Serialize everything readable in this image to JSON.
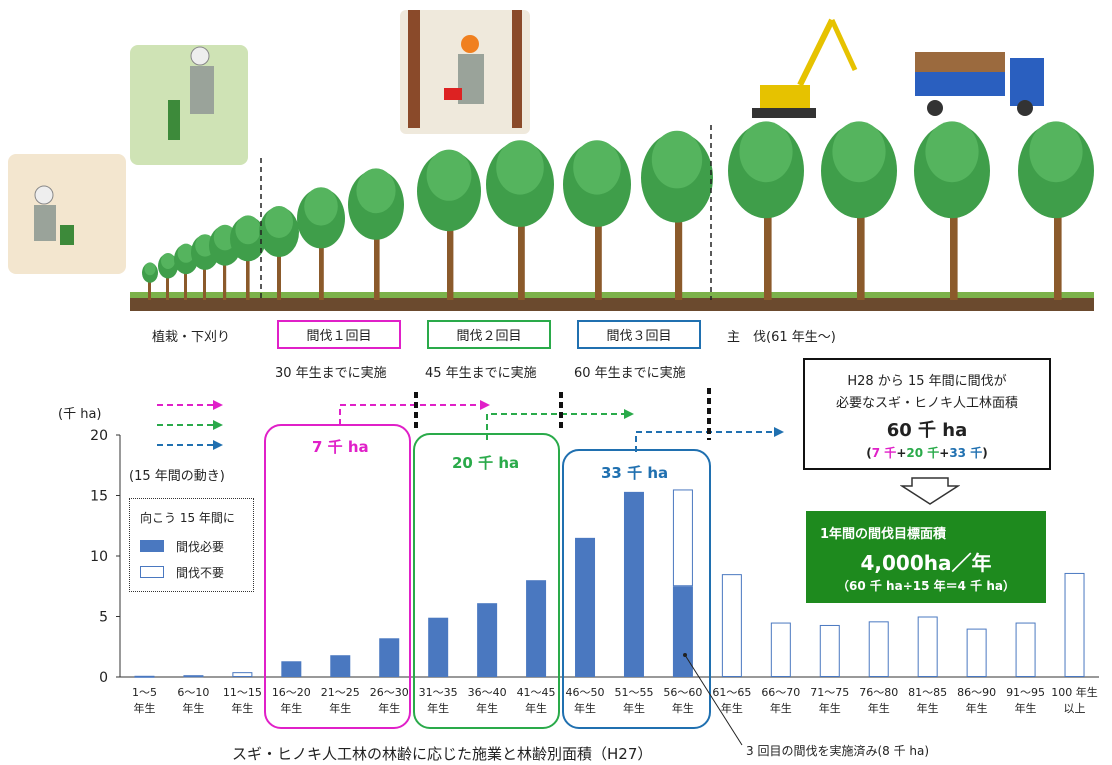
{
  "stages": {
    "planting": "植栽・下刈り",
    "thin1": "間伐１回目",
    "thin1_deadline": "30 年生までに実施",
    "thin2": "間伐２回目",
    "thin2_deadline": "45 年生までに実施",
    "thin3": "間伐３回目",
    "thin3_deadline": "60 年生までに実施",
    "final": "主　伐(61 年生～)"
  },
  "movement_note": "(15 年間の動き)",
  "legend": {
    "title": "向こう 15 年間に",
    "needed": "間伐必要",
    "not_needed": "間伐不要"
  },
  "groups": [
    {
      "label": "7 千 ha",
      "color": "#e020c8"
    },
    {
      "label": "20 千 ha",
      "color": "#2aaa4a"
    },
    {
      "label": "33 千 ha",
      "color": "#2070b0"
    }
  ],
  "info_box": {
    "line1": "H28 から 15 年間に間伐が",
    "line2": "必要なスギ・ヒノキ人工林面積",
    "line3": "60 千 ha",
    "line4_pre": "(",
    "line4_a": "7 千",
    "line4_b": "20 千",
    "line4_c": "33 千",
    "line4_post": ")",
    "plus": "+"
  },
  "target_box": {
    "line1": "1年間の間伐目標面積",
    "line2": "4,000ha／年",
    "line3": "（60 千 ha÷15 年＝4 千 ha）"
  },
  "footnote": "3 回目の間伐を実施済み(8 千 ha)",
  "caption": "スギ・ヒノキ人工林の林齢に応じた施業と林齢別面積（H27）",
  "colors": {
    "bar_fill": "#4a78c0",
    "bar_outline": "#4a78c0",
    "pink": "#e020c8",
    "green": "#2aaa4a",
    "blue": "#2070b0",
    "box_green": "#1e8a1e"
  },
  "chart_data": {
    "type": "bar",
    "ylabel": "(千 ha)",
    "ylim": [
      0,
      20
    ],
    "yticks": [
      0,
      5,
      10,
      15,
      20
    ],
    "categories": [
      [
        "1～5",
        "年生"
      ],
      [
        "6～10",
        "年生"
      ],
      [
        "11～15",
        "年生"
      ],
      [
        "16～20",
        "年生"
      ],
      [
        "21～25",
        "年生"
      ],
      [
        "26～30",
        "年生"
      ],
      [
        "31～35",
        "年生"
      ],
      [
        "36～40",
        "年生"
      ],
      [
        "41～45",
        "年生"
      ],
      [
        "46～50",
        "年生"
      ],
      [
        "51～55",
        "年生"
      ],
      [
        "56～60",
        "年生"
      ],
      [
        "61～65",
        "年生"
      ],
      [
        "66～70",
        "年生"
      ],
      [
        "71～75",
        "年生"
      ],
      [
        "76～80",
        "年生"
      ],
      [
        "81～85",
        "年生"
      ],
      [
        "86～90",
        "年生"
      ],
      [
        "91～95",
        "年生"
      ],
      [
        "100 年生",
        "以上"
      ]
    ],
    "series": [
      {
        "name": "間伐必要",
        "values": [
          0,
          0,
          0,
          1.3,
          1.8,
          3.2,
          4.9,
          6.1,
          8.0,
          11.5,
          15.3,
          7.5,
          0,
          0,
          0,
          0,
          0,
          0,
          0,
          0
        ]
      },
      {
        "name": "間伐不要",
        "values": [
          0.1,
          0.15,
          0.4,
          0,
          0,
          0,
          0,
          0,
          0,
          0,
          0,
          8.0,
          8.5,
          4.5,
          4.3,
          4.6,
          5.0,
          4.0,
          4.5,
          8.6
        ]
      }
    ]
  }
}
